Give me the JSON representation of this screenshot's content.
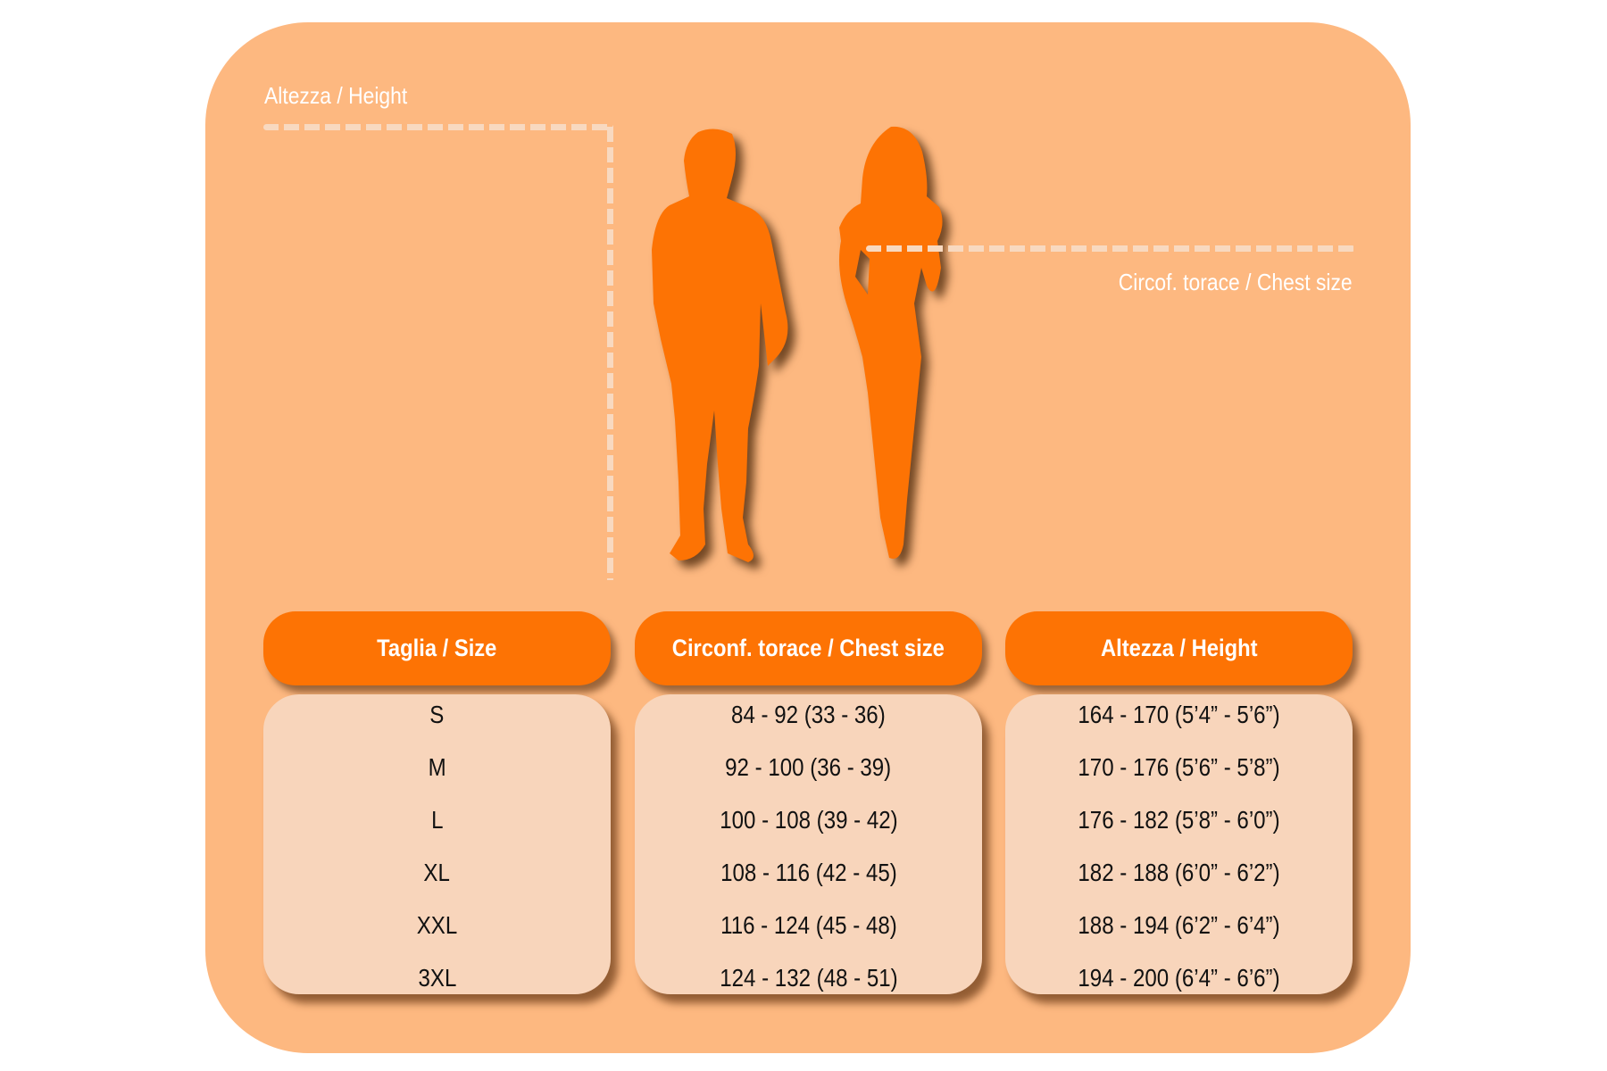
{
  "colors": {
    "background": "#fdb880",
    "accent": "#fd7304",
    "cell": "#f8d5bb",
    "dash": "#f8d9c0"
  },
  "diagram": {
    "height_label": "Altezza / Height",
    "chest_label": "Circof. torace / Chest size",
    "icons": [
      "man-silhouette",
      "woman-silhouette"
    ]
  },
  "table": {
    "headers": [
      "Taglia / Size",
      "Circonf. torace / Chest size",
      "Altezza / Height"
    ],
    "sizes": [
      "S",
      "M",
      "L",
      "XL",
      "XXL",
      "3XL"
    ],
    "chest": [
      "84 - 92 (33 - 36)",
      "92 - 100 (36 - 39)",
      "100 - 108 (39 - 42)",
      "108 - 116 (42 - 45)",
      "116 - 124 (45 - 48)",
      "124 - 132 (48 - 51)"
    ],
    "height": [
      "164 - 170 (5’4” - 5’6”)",
      "170 - 176 (5’6” - 5’8”)",
      "176 - 182 (5’8” - 6’0”)",
      "182 - 188 (6’0” - 6’2”)",
      "188 - 194 (6’2” - 6’4”)",
      "194 - 200 (6’4” - 6’6”)"
    ]
  }
}
